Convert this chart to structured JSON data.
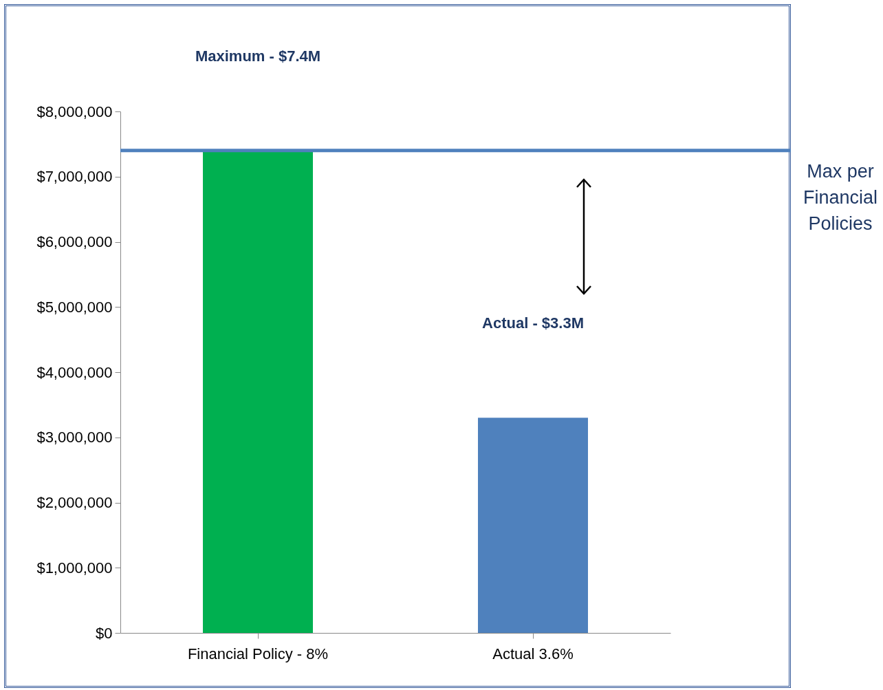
{
  "chart_data": {
    "type": "bar",
    "categories": [
      "Financial Policy - 8%",
      "Actual 3.6%"
    ],
    "values": [
      7400000,
      3300000
    ],
    "colors": [
      "#00b050",
      "#4f81bd"
    ],
    "annotations": [
      "Maximum - $7.4M",
      "Actual - $3.3M"
    ],
    "ylim": [
      0,
      8000000
    ],
    "yticks": [
      {
        "value": 0,
        "label": "$0"
      },
      {
        "value": 1000000,
        "label": "$1,000,000"
      },
      {
        "value": 2000000,
        "label": "$2,000,000"
      },
      {
        "value": 3000000,
        "label": "$3,000,000"
      },
      {
        "value": 4000000,
        "label": "$4,000,000"
      },
      {
        "value": 5000000,
        "label": "$5,000,000"
      },
      {
        "value": 6000000,
        "label": "$6,000,000"
      },
      {
        "value": 7000000,
        "label": "$7,000,000"
      },
      {
        "value": 8000000,
        "label": "$8,000,000"
      }
    ],
    "ref_lines": [
      {
        "axis": "y",
        "value": 7400000,
        "label": "Max per Financial Policies",
        "color": "#4f81bd"
      }
    ],
    "grid": false,
    "legend": false
  }
}
